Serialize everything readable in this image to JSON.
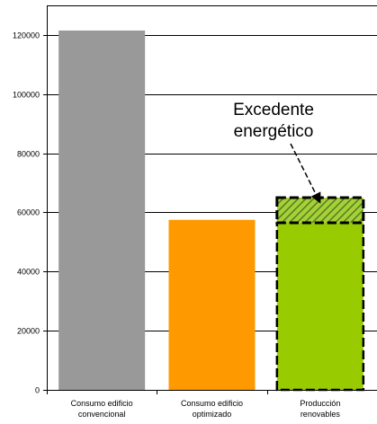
{
  "chart_data": {
    "type": "bar",
    "categories": [
      [
        "Consumo edificio",
        "convencional"
      ],
      [
        "Consumo edificio",
        "optimizado"
      ],
      [
        "Producción",
        "renovables"
      ]
    ],
    "values": [
      121500,
      57500,
      56500
    ],
    "surplus": {
      "category_index": 2,
      "from": 56500,
      "to": 65000,
      "label_lines": [
        "Excedente",
        "energético"
      ]
    },
    "ylim": [
      0,
      130000
    ],
    "yticks": [
      0,
      20000,
      40000,
      60000,
      80000,
      100000,
      120000
    ],
    "ytick_labels": [
      "0",
      "20000",
      "40000",
      "60000",
      "80000",
      "100000",
      "120000"
    ],
    "grid": true,
    "colors": {
      "bars": [
        "#999999",
        "#ff9900",
        "#99cc00"
      ],
      "grid": "#000000",
      "surplus_hatch": "#4d7f1a"
    }
  }
}
